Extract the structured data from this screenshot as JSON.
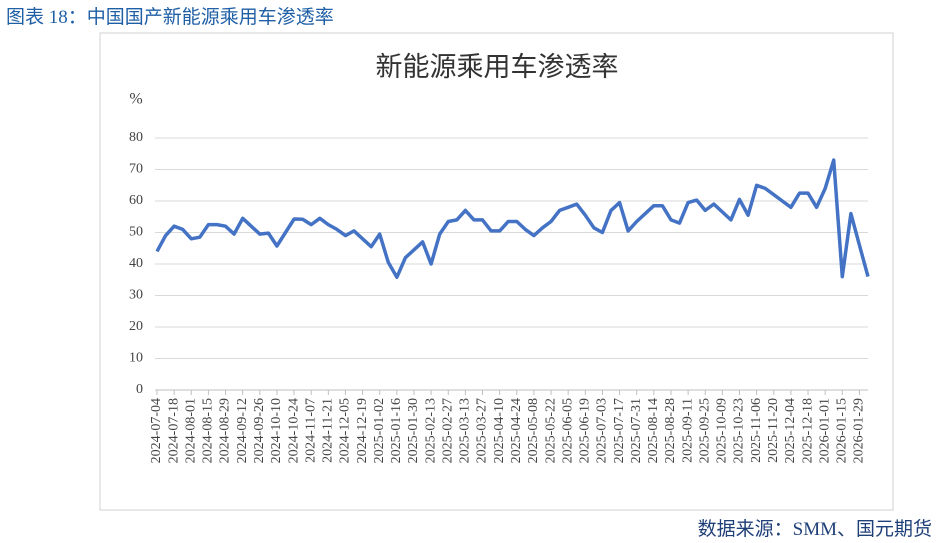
{
  "header": {
    "title": "图表 18：中国国产新能源乘用车渗透率"
  },
  "source": "数据来源：SMM、国元期货",
  "chart_data": {
    "type": "line",
    "title": "新能源乘用车渗透率",
    "y_label": "%",
    "x": [
      "2024-07-04",
      null,
      "2024-07-18",
      null,
      "2024-08-01",
      null,
      "2024-08-15",
      null,
      "2024-08-29",
      null,
      "2024-09-12",
      null,
      "2024-09-26",
      null,
      "2024-10-10",
      null,
      "2024-10-24",
      null,
      "2024-11-07",
      null,
      "2024-11-21",
      null,
      "2024-12-05",
      null,
      "2024-12-19",
      null,
      "2025-01-02",
      null,
      "2025-01-16",
      null,
      "2025-01-30",
      null,
      "2025-02-13",
      null,
      "2025-02-27",
      null,
      "2025-03-13",
      null,
      "2025-03-27",
      null,
      "2025-04-10",
      null,
      "2025-04-24",
      null,
      "2025-05-08",
      null,
      "2025-05-22",
      null,
      "2025-06-05",
      null,
      "2025-06-19",
      null,
      "2025-07-03",
      null,
      "2025-07-17",
      null,
      "2025-07-31",
      null,
      "2025-08-14",
      null,
      "2025-08-28",
      null,
      "2025-09-11",
      null,
      "2025-09-25",
      null,
      "2025-10-09",
      null,
      "2025-10-23",
      null,
      "2025-11-06",
      null,
      "2025-11-20",
      null,
      "2025-12-04",
      null,
      "2025-12-18",
      null,
      "2026-01-01",
      null,
      "2026-01-15",
      null,
      "2026-01-29",
      null
    ],
    "series": [
      {
        "color": "#4472c4",
        "values": [
          44,
          49,
          52,
          51,
          48,
          48.5,
          52.5,
          52.5,
          52,
          49.5,
          54.5,
          52,
          49.5,
          49.8,
          45.7,
          50,
          54.3,
          54.2,
          52.5,
          54.5,
          52.5,
          51,
          49,
          50.5,
          48,
          45.5,
          49.5,
          40.5,
          35.8,
          42,
          44.5,
          47,
          40,
          49.5,
          53.5,
          54,
          57,
          54,
          54,
          50.5,
          50.5,
          53.5,
          53.5,
          51,
          49,
          51.5,
          53.5,
          57,
          58,
          59,
          55.5,
          51.5,
          50,
          57,
          59.5,
          50.5,
          53.5,
          56,
          58.5,
          58.5,
          54,
          53,
          59.5,
          60.3,
          57,
          59,
          56.5,
          54,
          60.5,
          55.5,
          65,
          64,
          62,
          60,
          58,
          62.5,
          62.5,
          58,
          64,
          73,
          36,
          56,
          46,
          36
        ]
      }
    ],
    "ylim": [
      0,
      80
    ],
    "yticks": [
      0,
      10,
      20,
      30,
      40,
      50,
      60,
      70,
      80
    ],
    "grid": true
  }
}
